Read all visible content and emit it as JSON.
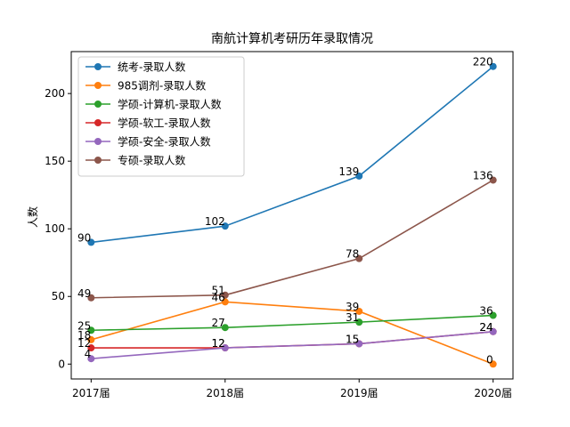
{
  "chart_data": {
    "type": "line",
    "title": "南航计算机考研历年录取情况",
    "xlabel": "",
    "ylabel": "人数",
    "categories": [
      "2017届",
      "2018届",
      "2019届",
      "2020届"
    ],
    "yticks": [
      0,
      50,
      100,
      150,
      200
    ],
    "ylim": [
      -11,
      231
    ],
    "grid": false,
    "legend_position": "top-left",
    "series": [
      {
        "name": "统考-录取人数",
        "color": "#1f77b4",
        "values": [
          90,
          102,
          139,
          220
        ]
      },
      {
        "name": "985调剂-录取人数",
        "color": "#ff7f0e",
        "values": [
          18,
          46,
          39,
          0
        ]
      },
      {
        "name": "学硕-计算机-录取人数",
        "color": "#2ca02c",
        "values": [
          25,
          27,
          31,
          36
        ]
      },
      {
        "name": "学硕-软工-录取人数",
        "color": "#d62728",
        "values": [
          12,
          12,
          15,
          24
        ]
      },
      {
        "name": "学硕-安全-录取人数",
        "color": "#9467bd",
        "values": [
          4,
          12,
          15,
          24
        ]
      },
      {
        "name": "专硕-录取人数",
        "color": "#8c564b",
        "values": [
          49,
          51,
          78,
          136
        ]
      }
    ]
  }
}
